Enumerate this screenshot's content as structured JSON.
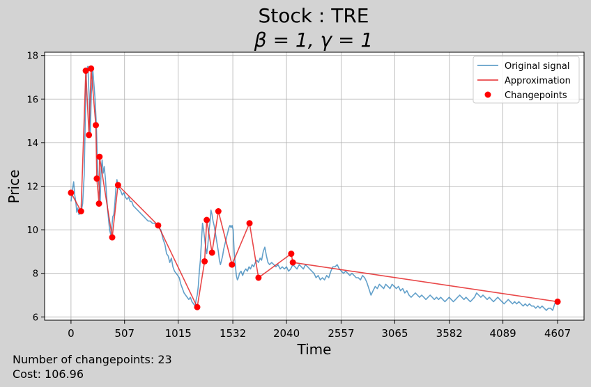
{
  "chart_data": {
    "type": "line",
    "title_line1": "Stock : TRE",
    "title_line2": "β = 1, γ = 1",
    "xlabel": "Time",
    "ylabel": "Price",
    "xlim": [
      -250,
      4857
    ],
    "ylim": [
      5.85,
      18.15
    ],
    "xticks": [
      0,
      507,
      1015,
      1532,
      2040,
      2557,
      3065,
      3582,
      4089,
      4607
    ],
    "yticks": [
      6,
      8,
      10,
      12,
      14,
      16,
      18
    ],
    "grid": true,
    "legend_position": "top-right",
    "legend": {
      "original": "Original signal",
      "approximation": "Approximation",
      "changepoints": "Changepoints"
    },
    "colors": {
      "original": "#1f77b4",
      "approximation": "#e41a1c",
      "changepoints": "#ff0000"
    },
    "original_signal": [
      [
        0,
        11.3
      ],
      [
        15,
        11.9
      ],
      [
        25,
        12.2
      ],
      [
        35,
        11.6
      ],
      [
        45,
        11.3
      ],
      [
        55,
        10.8
      ],
      [
        65,
        11.0
      ],
      [
        75,
        10.7
      ],
      [
        85,
        10.9
      ],
      [
        95,
        10.8
      ],
      [
        110,
        11.2
      ],
      [
        125,
        12.5
      ],
      [
        135,
        15.0
      ],
      [
        145,
        17.3
      ],
      [
        160,
        17.5
      ],
      [
        172,
        16.0
      ],
      [
        182,
        14.3
      ],
      [
        192,
        16.2
      ],
      [
        205,
        17.4
      ],
      [
        215,
        16.8
      ],
      [
        228,
        16.0
      ],
      [
        240,
        14.8
      ],
      [
        250,
        13.0
      ],
      [
        258,
        12.3
      ],
      [
        266,
        12.0
      ],
      [
        276,
        11.2
      ],
      [
        285,
        12.8
      ],
      [
        295,
        13.2
      ],
      [
        305,
        12.6
      ],
      [
        315,
        12.9
      ],
      [
        325,
        12.4
      ],
      [
        335,
        11.7
      ],
      [
        345,
        11.0
      ],
      [
        355,
        10.5
      ],
      [
        365,
        10.0
      ],
      [
        375,
        9.8
      ],
      [
        385,
        10.0
      ],
      [
        395,
        10.6
      ],
      [
        405,
        10.7
      ],
      [
        415,
        11.2
      ],
      [
        425,
        11.9
      ],
      [
        435,
        12.3
      ],
      [
        445,
        12.0
      ],
      [
        455,
        11.9
      ],
      [
        470,
        11.8
      ],
      [
        485,
        11.6
      ],
      [
        500,
        11.7
      ],
      [
        515,
        11.5
      ],
      [
        530,
        11.4
      ],
      [
        545,
        11.5
      ],
      [
        560,
        11.3
      ],
      [
        575,
        11.3
      ],
      [
        590,
        11.1
      ],
      [
        610,
        11.0
      ],
      [
        630,
        10.9
      ],
      [
        650,
        10.8
      ],
      [
        670,
        10.7
      ],
      [
        690,
        10.6
      ],
      [
        710,
        10.5
      ],
      [
        730,
        10.4
      ],
      [
        750,
        10.4
      ],
      [
        770,
        10.3
      ],
      [
        790,
        10.3
      ],
      [
        810,
        10.2
      ],
      [
        830,
        10.1
      ],
      [
        850,
        10.0
      ],
      [
        870,
        9.6
      ],
      [
        890,
        9.3
      ],
      [
        905,
        8.9
      ],
      [
        920,
        8.8
      ],
      [
        935,
        8.5
      ],
      [
        950,
        8.7
      ],
      [
        965,
        8.3
      ],
      [
        980,
        8.1
      ],
      [
        995,
        8.0
      ],
      [
        1010,
        7.9
      ],
      [
        1025,
        7.8
      ],
      [
        1040,
        7.5
      ],
      [
        1055,
        7.3
      ],
      [
        1070,
        7.1
      ],
      [
        1085,
        7.0
      ],
      [
        1100,
        6.9
      ],
      [
        1115,
        6.8
      ],
      [
        1130,
        6.9
      ],
      [
        1145,
        6.7
      ],
      [
        1160,
        6.6
      ],
      [
        1175,
        6.5
      ],
      [
        1185,
        6.8
      ],
      [
        1195,
        7.0
      ],
      [
        1205,
        7.4
      ],
      [
        1215,
        8.1
      ],
      [
        1225,
        8.6
      ],
      [
        1235,
        9.5
      ],
      [
        1245,
        10.3
      ],
      [
        1255,
        10.0
      ],
      [
        1265,
        9.6
      ],
      [
        1275,
        9.2
      ],
      [
        1285,
        8.9
      ],
      [
        1295,
        9.3
      ],
      [
        1305,
        9.9
      ],
      [
        1315,
        10.3
      ],
      [
        1325,
        10.9
      ],
      [
        1335,
        10.7
      ],
      [
        1345,
        10.4
      ],
      [
        1355,
        10.2
      ],
      [
        1365,
        9.9
      ],
      [
        1375,
        9.6
      ],
      [
        1385,
        9.3
      ],
      [
        1395,
        9.0
      ],
      [
        1405,
        8.6
      ],
      [
        1415,
        8.4
      ],
      [
        1425,
        8.6
      ],
      [
        1435,
        8.8
      ],
      [
        1445,
        9.1
      ],
      [
        1455,
        9.3
      ],
      [
        1465,
        9.5
      ],
      [
        1475,
        9.7
      ],
      [
        1485,
        9.9
      ],
      [
        1495,
        10.1
      ],
      [
        1505,
        10.2
      ],
      [
        1515,
        10.1
      ],
      [
        1525,
        10.2
      ],
      [
        1535,
        10.0
      ],
      [
        1545,
        9.0
      ],
      [
        1555,
        8.4
      ],
      [
        1565,
        7.9
      ],
      [
        1575,
        7.7
      ],
      [
        1585,
        7.8
      ],
      [
        1595,
        8.0
      ],
      [
        1610,
        8.1
      ],
      [
        1625,
        7.9
      ],
      [
        1640,
        8.1
      ],
      [
        1655,
        8.2
      ],
      [
        1670,
        8.1
      ],
      [
        1685,
        8.3
      ],
      [
        1700,
        8.2
      ],
      [
        1715,
        8.4
      ],
      [
        1730,
        8.3
      ],
      [
        1745,
        8.5
      ],
      [
        1760,
        8.6
      ],
      [
        1775,
        8.5
      ],
      [
        1790,
        8.7
      ],
      [
        1805,
        8.6
      ],
      [
        1820,
        9.0
      ],
      [
        1835,
        9.2
      ],
      [
        1850,
        8.8
      ],
      [
        1865,
        8.5
      ],
      [
        1880,
        8.4
      ],
      [
        1900,
        8.5
      ],
      [
        1920,
        8.4
      ],
      [
        1940,
        8.3
      ],
      [
        1960,
        8.4
      ],
      [
        1980,
        8.2
      ],
      [
        2000,
        8.3
      ],
      [
        2020,
        8.2
      ],
      [
        2040,
        8.3
      ],
      [
        2060,
        8.1
      ],
      [
        2080,
        8.2
      ],
      [
        2100,
        8.4
      ],
      [
        2120,
        8.3
      ],
      [
        2140,
        8.2
      ],
      [
        2160,
        8.4
      ],
      [
        2180,
        8.3
      ],
      [
        2200,
        8.2
      ],
      [
        2220,
        8.4
      ],
      [
        2240,
        8.3
      ],
      [
        2260,
        8.2
      ],
      [
        2280,
        8.1
      ],
      [
        2300,
        8.0
      ],
      [
        2320,
        7.8
      ],
      [
        2340,
        7.9
      ],
      [
        2360,
        7.7
      ],
      [
        2380,
        7.8
      ],
      [
        2400,
        7.7
      ],
      [
        2420,
        7.9
      ],
      [
        2440,
        7.8
      ],
      [
        2460,
        8.1
      ],
      [
        2480,
        8.3
      ],
      [
        2500,
        8.3
      ],
      [
        2520,
        8.4
      ],
      [
        2540,
        8.2
      ],
      [
        2560,
        8.1
      ],
      [
        2580,
        8.0
      ],
      [
        2600,
        8.1
      ],
      [
        2620,
        8.0
      ],
      [
        2640,
        7.9
      ],
      [
        2660,
        8.0
      ],
      [
        2680,
        7.9
      ],
      [
        2700,
        7.8
      ],
      [
        2720,
        7.8
      ],
      [
        2740,
        7.7
      ],
      [
        2760,
        7.9
      ],
      [
        2780,
        7.8
      ],
      [
        2800,
        7.6
      ],
      [
        2820,
        7.3
      ],
      [
        2840,
        7.0
      ],
      [
        2860,
        7.2
      ],
      [
        2880,
        7.4
      ],
      [
        2900,
        7.3
      ],
      [
        2920,
        7.5
      ],
      [
        2940,
        7.4
      ],
      [
        2960,
        7.3
      ],
      [
        2980,
        7.5
      ],
      [
        3000,
        7.4
      ],
      [
        3020,
        7.3
      ],
      [
        3040,
        7.5
      ],
      [
        3060,
        7.4
      ],
      [
        3080,
        7.3
      ],
      [
        3100,
        7.4
      ],
      [
        3120,
        7.2
      ],
      [
        3140,
        7.3
      ],
      [
        3160,
        7.1
      ],
      [
        3180,
        7.2
      ],
      [
        3200,
        7.0
      ],
      [
        3220,
        6.9
      ],
      [
        3240,
        7.0
      ],
      [
        3260,
        7.1
      ],
      [
        3280,
        7.0
      ],
      [
        3300,
        6.9
      ],
      [
        3320,
        7.0
      ],
      [
        3340,
        6.9
      ],
      [
        3360,
        6.8
      ],
      [
        3380,
        6.9
      ],
      [
        3400,
        7.0
      ],
      [
        3420,
        6.9
      ],
      [
        3440,
        6.8
      ],
      [
        3460,
        6.9
      ],
      [
        3480,
        6.8
      ],
      [
        3500,
        6.9
      ],
      [
        3520,
        6.8
      ],
      [
        3540,
        6.7
      ],
      [
        3560,
        6.8
      ],
      [
        3580,
        6.9
      ],
      [
        3600,
        6.8
      ],
      [
        3620,
        6.7
      ],
      [
        3640,
        6.8
      ],
      [
        3660,
        6.9
      ],
      [
        3680,
        7.0
      ],
      [
        3700,
        6.9
      ],
      [
        3720,
        6.8
      ],
      [
        3740,
        6.9
      ],
      [
        3760,
        6.8
      ],
      [
        3780,
        6.7
      ],
      [
        3800,
        6.8
      ],
      [
        3820,
        6.9
      ],
      [
        3840,
        7.1
      ],
      [
        3860,
        7.0
      ],
      [
        3880,
        6.9
      ],
      [
        3900,
        7.0
      ],
      [
        3920,
        6.9
      ],
      [
        3940,
        6.8
      ],
      [
        3960,
        6.9
      ],
      [
        3980,
        6.8
      ],
      [
        4000,
        6.7
      ],
      [
        4020,
        6.8
      ],
      [
        4040,
        6.9
      ],
      [
        4060,
        6.8
      ],
      [
        4080,
        6.7
      ],
      [
        4100,
        6.6
      ],
      [
        4120,
        6.7
      ],
      [
        4140,
        6.8
      ],
      [
        4160,
        6.7
      ],
      [
        4180,
        6.6
      ],
      [
        4200,
        6.7
      ],
      [
        4220,
        6.6
      ],
      [
        4240,
        6.7
      ],
      [
        4260,
        6.6
      ],
      [
        4280,
        6.5
      ],
      [
        4300,
        6.6
      ],
      [
        4320,
        6.5
      ],
      [
        4340,
        6.6
      ],
      [
        4360,
        6.5
      ],
      [
        4380,
        6.5
      ],
      [
        4400,
        6.4
      ],
      [
        4420,
        6.5
      ],
      [
        4440,
        6.4
      ],
      [
        4460,
        6.5
      ],
      [
        4480,
        6.4
      ],
      [
        4500,
        6.3
      ],
      [
        4520,
        6.4
      ],
      [
        4540,
        6.4
      ],
      [
        4560,
        6.3
      ],
      [
        4580,
        6.6
      ],
      [
        4595,
        6.8
      ],
      [
        4607,
        6.7
      ]
    ],
    "changepoints": [
      [
        0,
        11.7
      ],
      [
        95,
        10.85
      ],
      [
        140,
        17.3
      ],
      [
        170,
        14.35
      ],
      [
        190,
        17.4
      ],
      [
        235,
        14.8
      ],
      [
        244,
        12.35
      ],
      [
        265,
        11.2
      ],
      [
        270,
        13.35
      ],
      [
        390,
        9.65
      ],
      [
        445,
        12.05
      ],
      [
        825,
        10.2
      ],
      [
        1195,
        6.45
      ],
      [
        1265,
        8.55
      ],
      [
        1285,
        10.45
      ],
      [
        1335,
        8.95
      ],
      [
        1395,
        10.85
      ],
      [
        1524,
        8.4
      ],
      [
        1690,
        10.3
      ],
      [
        1775,
        7.8
      ],
      [
        2085,
        8.9
      ],
      [
        2100,
        8.5
      ],
      [
        4607,
        6.7
      ]
    ],
    "approximation": [
      [
        0,
        11.7
      ],
      [
        95,
        10.85
      ],
      [
        140,
        17.3
      ],
      [
        170,
        14.35
      ],
      [
        190,
        17.4
      ],
      [
        235,
        14.8
      ],
      [
        244,
        12.35
      ],
      [
        265,
        11.2
      ],
      [
        270,
        13.35
      ],
      [
        390,
        9.65
      ],
      [
        445,
        12.05
      ],
      [
        825,
        10.2
      ],
      [
        1195,
        6.45
      ],
      [
        1265,
        8.55
      ],
      [
        1285,
        10.45
      ],
      [
        1335,
        8.95
      ],
      [
        1395,
        10.85
      ],
      [
        1524,
        8.4
      ],
      [
        1690,
        10.3
      ],
      [
        1775,
        7.8
      ],
      [
        2085,
        8.9
      ],
      [
        2100,
        8.5
      ],
      [
        4607,
        6.7
      ]
    ]
  },
  "footer": {
    "changepoints_text": "Number of changepoints: 23",
    "cost_text": "Cost: 106.96"
  }
}
